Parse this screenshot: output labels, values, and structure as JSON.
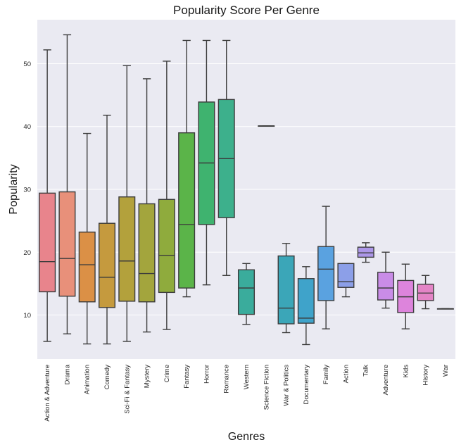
{
  "chart_data": {
    "type": "box",
    "title": "Popularity Score Per Genre",
    "xlabel": "Genres",
    "ylabel": "Popularity",
    "ylim": [
      3,
      57
    ],
    "yticks": [
      10,
      20,
      30,
      40,
      50
    ],
    "grid": true,
    "background": "#eaeaf2",
    "categories": [
      "Action & Adventure",
      "Drama",
      "Animation",
      "Comedy",
      "Sci-Fi & Fantasy",
      "Mystery",
      "Crime",
      "Fantasy",
      "Horror",
      "Romance",
      "Western",
      "Science Fiction",
      "War & Politics",
      "Documentary",
      "Family",
      "Action",
      "Talk",
      "Adventure",
      "Kids",
      "History",
      "War"
    ],
    "colors": [
      "#e8848c",
      "#e8907a",
      "#db9046",
      "#c59a3e",
      "#b3a13c",
      "#a3a53d",
      "#8fab3d",
      "#5bb449",
      "#3fb36f",
      "#3db08c",
      "#3aac9c",
      "#3aa9a9",
      "#3ba6b8",
      "#3fa3ca",
      "#5aa2e0",
      "#8c9fe8",
      "#ad97e9",
      "#c98ce7",
      "#dd84dc",
      "#e484c6",
      "#e685b3"
    ],
    "boxes": [
      {
        "whislo": 5.8,
        "q1": 13.7,
        "med": 18.5,
        "q3": 29.4,
        "whishi": 52.2
      },
      {
        "whislo": 7.0,
        "q1": 13.0,
        "med": 19.0,
        "q3": 29.6,
        "whishi": 54.6
      },
      {
        "whislo": 5.4,
        "q1": 12.1,
        "med": 18.0,
        "q3": 23.2,
        "whishi": 38.9
      },
      {
        "whislo": 5.4,
        "q1": 11.2,
        "med": 16.0,
        "q3": 24.6,
        "whishi": 41.8
      },
      {
        "whislo": 5.8,
        "q1": 12.2,
        "med": 18.6,
        "q3": 28.8,
        "whishi": 49.7
      },
      {
        "whislo": 7.3,
        "q1": 12.1,
        "med": 16.6,
        "q3": 27.7,
        "whishi": 47.6
      },
      {
        "whislo": 7.7,
        "q1": 13.6,
        "med": 19.5,
        "q3": 28.4,
        "whishi": 50.4
      },
      {
        "whislo": 12.9,
        "q1": 14.3,
        "med": 24.4,
        "q3": 39.0,
        "whishi": 53.7
      },
      {
        "whislo": 14.8,
        "q1": 24.4,
        "med": 34.2,
        "q3": 43.9,
        "whishi": 53.7
      },
      {
        "whislo": 16.3,
        "q1": 25.5,
        "med": 34.9,
        "q3": 44.3,
        "whishi": 53.7
      },
      {
        "whislo": 8.5,
        "q1": 10.1,
        "med": 14.3,
        "q3": 17.2,
        "whishi": 18.2
      },
      {
        "whislo": 40.1,
        "q1": 40.1,
        "med": 40.1,
        "q3": 40.1,
        "whishi": 40.1
      },
      {
        "whislo": 7.2,
        "q1": 8.6,
        "med": 11.1,
        "q3": 19.4,
        "whishi": 21.4
      },
      {
        "whislo": 5.3,
        "q1": 8.7,
        "med": 9.5,
        "q3": 15.8,
        "whishi": 17.7
      },
      {
        "whislo": 7.8,
        "q1": 12.3,
        "med": 17.3,
        "q3": 20.9,
        "whishi": 27.3
      },
      {
        "whislo": 12.9,
        "q1": 14.4,
        "med": 15.3,
        "q3": 18.2,
        "whishi": 18.2
      },
      {
        "whislo": 18.4,
        "q1": 19.2,
        "med": 19.9,
        "q3": 20.8,
        "whishi": 21.5
      },
      {
        "whislo": 11.1,
        "q1": 12.4,
        "med": 14.3,
        "q3": 16.8,
        "whishi": 20.0
      },
      {
        "whislo": 7.8,
        "q1": 10.4,
        "med": 12.9,
        "q3": 15.5,
        "whishi": 18.1
      },
      {
        "whislo": 11.0,
        "q1": 12.3,
        "med": 13.5,
        "q3": 14.9,
        "whishi": 16.3
      },
      {
        "whislo": 11.0,
        "q1": 11.0,
        "med": 11.0,
        "q3": 11.0,
        "whishi": 11.0
      }
    ]
  }
}
